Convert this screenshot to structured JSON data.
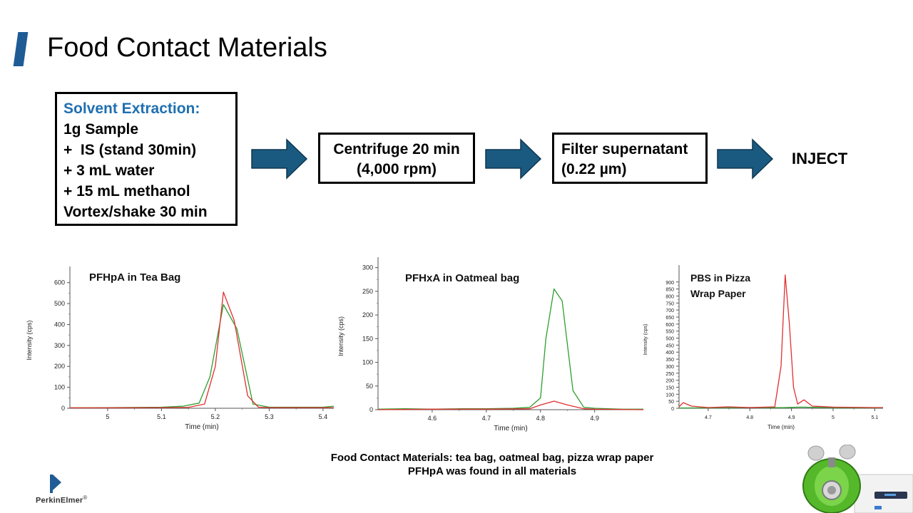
{
  "slide": {
    "title": "Food Contact Materials"
  },
  "workflow": {
    "extraction": {
      "heading": "Solvent Extraction:",
      "lines": [
        "1g Sample",
        "+  IS (stand 30min)",
        "+ 3 mL water",
        "+ 15 mL methanol",
        "Vortex/shake 30 min"
      ]
    },
    "centrifuge": {
      "line1": "Centrifuge 20 min",
      "line2": "(4,000 rpm)"
    },
    "filter": {
      "line1": "Filter supernatant",
      "line2": "(0.22 µm)"
    },
    "inject": "INJECT",
    "arrow_color": "#1a5a80"
  },
  "chart_data": [
    {
      "type": "line",
      "title": "PFHpA in Tea Bag",
      "xlabel": "Time (min)",
      "ylabel": "Intensity (cps)",
      "xlim": [
        4.93,
        5.42
      ],
      "ylim": [
        0,
        650
      ],
      "xticks": [
        5,
        5.1,
        5.2,
        5.3,
        5.4
      ],
      "yticks": [
        0,
        100,
        200,
        300,
        400,
        500,
        600
      ],
      "series": [
        {
          "color": "#2e9e2e",
          "x": [
            4.93,
            5.0,
            5.1,
            5.14,
            5.17,
            5.19,
            5.215,
            5.24,
            5.27,
            5.3,
            5.4,
            5.42
          ],
          "y": [
            2,
            3,
            5,
            10,
            25,
            150,
            495,
            380,
            20,
            5,
            5,
            10
          ]
        },
        {
          "color": "#e03030",
          "x": [
            4.93,
            5.0,
            5.1,
            5.15,
            5.18,
            5.2,
            5.215,
            5.235,
            5.26,
            5.28,
            5.3,
            5.4,
            5.42
          ],
          "y": [
            2,
            2,
            3,
            4,
            20,
            200,
            555,
            420,
            60,
            5,
            3,
            3,
            3
          ]
        }
      ]
    },
    {
      "type": "line",
      "title": "PFHxA in Oatmeal bag",
      "xlabel": "Time (min)",
      "ylabel": "Intensity (cps)",
      "xlim": [
        4.5,
        4.99
      ],
      "ylim": [
        0,
        310
      ],
      "xticks": [
        4.6,
        4.7,
        4.8,
        4.9
      ],
      "yticks": [
        0,
        50,
        100,
        150,
        200,
        250,
        300
      ],
      "series": [
        {
          "color": "#2e9e2e",
          "x": [
            4.5,
            4.55,
            4.6,
            4.65,
            4.7,
            4.75,
            4.78,
            4.8,
            4.81,
            4.825,
            4.84,
            4.86,
            4.88,
            4.9,
            4.95,
            4.99
          ],
          "y": [
            1,
            2,
            1,
            2,
            2,
            3,
            5,
            25,
            150,
            255,
            230,
            40,
            5,
            3,
            1,
            1
          ]
        },
        {
          "color": "#e03030",
          "x": [
            4.5,
            4.6,
            4.7,
            4.78,
            4.8,
            4.825,
            4.85,
            4.88,
            4.9,
            4.99
          ],
          "y": [
            0,
            1,
            1,
            2,
            10,
            18,
            10,
            2,
            1,
            0
          ]
        }
      ]
    },
    {
      "type": "line",
      "title": "PBS in Pizza\nWrap Paper",
      "xlabel": "Time (min)",
      "ylabel": "Intensity (cps)",
      "xlim": [
        4.63,
        5.12
      ],
      "ylim": [
        0,
        980
      ],
      "xticks": [
        4.7,
        4.8,
        4.9,
        5,
        5.1
      ],
      "yticks": [
        0,
        50,
        100,
        150,
        200,
        250,
        300,
        350,
        400,
        450,
        500,
        550,
        600,
        650,
        700,
        750,
        800,
        850,
        900
      ],
      "series": [
        {
          "color": "#2e9e2e",
          "x": [
            4.63,
            4.7,
            4.8,
            4.88,
            4.92,
            5.0,
            5.1,
            5.12
          ],
          "y": [
            2,
            3,
            5,
            4,
            8,
            4,
            3,
            3
          ]
        },
        {
          "color": "#e03030",
          "x": [
            4.63,
            4.64,
            4.66,
            4.7,
            4.75,
            4.8,
            4.86,
            4.875,
            4.885,
            4.895,
            4.905,
            4.915,
            4.93,
            4.95,
            5.0,
            5.1,
            5.12
          ],
          "y": [
            10,
            40,
            15,
            5,
            10,
            5,
            10,
            300,
            950,
            600,
            150,
            30,
            60,
            15,
            8,
            5,
            5
          ]
        }
      ]
    }
  ],
  "caption": {
    "line1": "Food Contact Materials: tea bag, oatmeal bag, pizza wrap paper",
    "line2": "PFHpA was found in all materials"
  },
  "logo": {
    "text": "PerkinElmer",
    "trademark": "®",
    "icon": "perkinelmer-p-logo",
    "color": "#1f5c96"
  },
  "instrument": {
    "icon": "lc-ms-instrument"
  }
}
